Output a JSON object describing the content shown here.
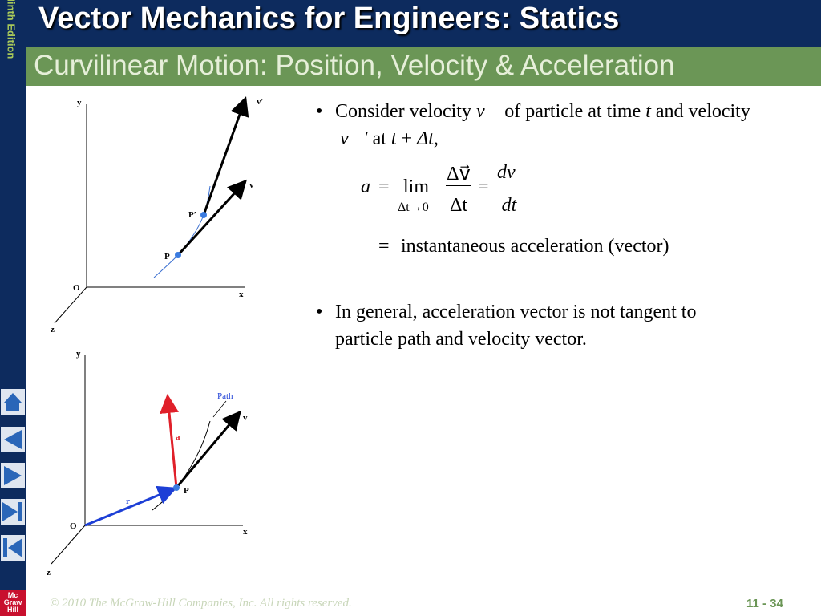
{
  "sidebar": {
    "edition": "Ninth Edition",
    "logo": "Mc Graw Hill"
  },
  "header": {
    "title": "Vector Mechanics for Engineers: Statics",
    "subtitle": "Curvilinear Motion:  Position, Velocity & Acceleration"
  },
  "figure_top": {
    "y": "y",
    "v_prime": "v′",
    "v": "v",
    "p_prime": "P′",
    "p": "P",
    "o": "O",
    "x": "x",
    "z": "z"
  },
  "figure_bottom": {
    "y": "y",
    "path": "Path",
    "v": "v",
    "a": "a",
    "p": "P",
    "r": "r",
    "o": "O",
    "x": "x",
    "z": "z"
  },
  "bullets": [
    {
      "segments": [
        "Consider velocity ",
        "v⃗",
        " of particle at time ",
        "t",
        " and velocity",
        "v⃗′",
        " at ",
        "t",
        " + ",
        "Δt",
        ","
      ]
    },
    {
      "lines": [
        "In general, acceleration vector is not tangent to",
        "particle path and velocity vector."
      ]
    }
  ],
  "equation": {
    "lhs": "a⃗",
    "eq1": "=",
    "lim": "lim",
    "lim_sub": "Δt→0",
    "num1": "Δv⃗",
    "den1": "Δt",
    "eq2": "=",
    "num2": "dv⃗",
    "den2": "dt",
    "eq3": "=",
    "meaning": "instantaneous acceleration (vector)"
  },
  "footer": {
    "copyright": "© 2010 The McGraw-Hill Companies, Inc. All rights reserved.",
    "page": "11 - 34"
  }
}
